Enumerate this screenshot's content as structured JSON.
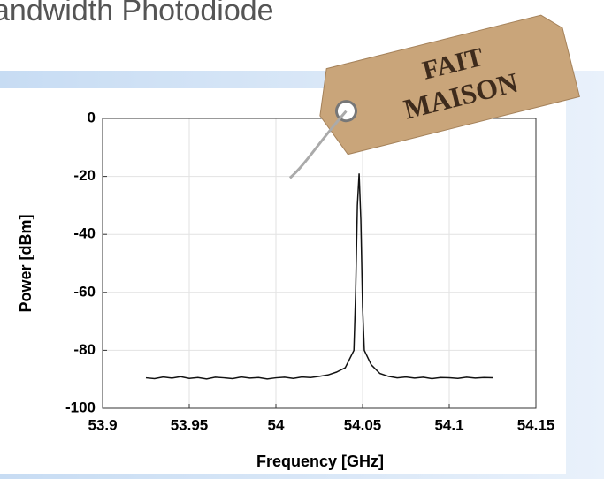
{
  "slide_title": "andwidth Photodiode",
  "tag": {
    "line1": "FAIT",
    "line2": "MAISON"
  },
  "chart_data": {
    "type": "line",
    "xlabel": "Frequency [GHz]",
    "ylabel": "Power [dBm]",
    "x": [
      53.925,
      53.93,
      53.935,
      53.94,
      53.945,
      53.95,
      53.955,
      53.96,
      53.965,
      53.97,
      53.975,
      53.98,
      53.985,
      53.99,
      53.995,
      54,
      54.005,
      54.01,
      54.015,
      54.02,
      54.025,
      54.03,
      54.035,
      54.04,
      54.045,
      54.046,
      54.047,
      54.048,
      54.049,
      54.05,
      54.051,
      54.055,
      54.06,
      54.065,
      54.07,
      54.075,
      54.08,
      54.085,
      54.09,
      54.095,
      54.1,
      54.105,
      54.11,
      54.115,
      54.12,
      54.125
    ],
    "series": [
      {
        "name": "Power",
        "color": "#111111",
        "values": [
          -89.5,
          -89.8,
          -89.2,
          -89.6,
          -89.1,
          -89.7,
          -89.4,
          -89.9,
          -89.3,
          -89.5,
          -89.8,
          -89.2,
          -89.6,
          -89.4,
          -89.9,
          -89.5,
          -89.3,
          -89.7,
          -89.2,
          -89.4,
          -89,
          -88.5,
          -87.5,
          -86,
          -80,
          -60,
          -30,
          -19,
          -35,
          -65,
          -80,
          -85,
          -88,
          -89,
          -89.5,
          -89.2,
          -89.6,
          -89.3,
          -89.8,
          -89.4,
          -89.5,
          -89.7,
          -89.3,
          -89.6,
          -89.4,
          -89.5
        ]
      }
    ],
    "xlim": [
      53.9,
      54.15
    ],
    "xticks": [
      53.9,
      53.95,
      54,
      54.05,
      54.1,
      54.15
    ],
    "ylim": [
      -100,
      0
    ],
    "yticks": [
      0,
      -20,
      -40,
      -60,
      -80,
      -100
    ],
    "grid": true
  }
}
